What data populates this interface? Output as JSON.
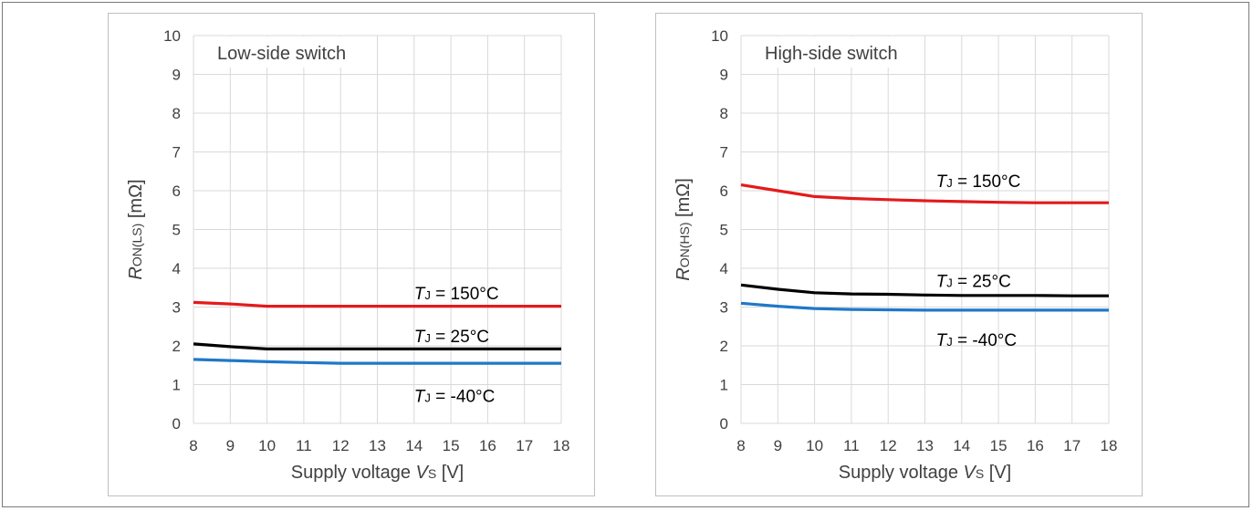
{
  "chart_data": [
    {
      "type": "line",
      "title": "Low-side switch",
      "xlabel": "Supply voltage VS [V]",
      "xlabel_parts": {
        "pre": "Supply voltage ",
        "var": "V",
        "sub": "S",
        "post": " [V]"
      },
      "ylabel": "RON(LS) [mΩ]",
      "ylabel_parts": {
        "var": "R",
        "sub": "ON(LS)",
        "post": " [mΩ]"
      },
      "xlim": [
        8,
        18
      ],
      "ylim": [
        0,
        10
      ],
      "xticks": [
        "8",
        "9",
        "10",
        "11",
        "12",
        "13",
        "14",
        "15",
        "16",
        "17",
        "18"
      ],
      "yticks": [
        "0",
        "1",
        "2",
        "3",
        "4",
        "5",
        "6",
        "7",
        "8",
        "9",
        "10"
      ],
      "grid": true,
      "series": [
        {
          "name": "TJ = 150°C",
          "label_parts": {
            "var": "T",
            "sub": "J",
            "post": " = 150°C"
          },
          "color": "#e31a1c",
          "x": [
            8,
            9,
            10,
            11,
            12,
            13,
            14,
            15,
            16,
            17,
            18
          ],
          "y": [
            3.12,
            3.08,
            3.02,
            3.02,
            3.02,
            3.02,
            3.02,
            3.02,
            3.02,
            3.02,
            3.02
          ],
          "label_at": [
            14,
            3.2
          ]
        },
        {
          "name": "TJ = 25°C",
          "label_parts": {
            "var": "T",
            "sub": "J",
            "post": " = 25°C"
          },
          "color": "#000000",
          "x": [
            8,
            9,
            10,
            11,
            12,
            13,
            14,
            15,
            16,
            17,
            18
          ],
          "y": [
            2.05,
            1.98,
            1.92,
            1.92,
            1.92,
            1.92,
            1.92,
            1.92,
            1.92,
            1.92,
            1.92
          ],
          "label_at": [
            14,
            2.1
          ]
        },
        {
          "name": "TJ = -40°C",
          "label_parts": {
            "var": "T",
            "sub": "J",
            "post": " = -40°C"
          },
          "color": "#1f78c8",
          "x": [
            8,
            9,
            10,
            11,
            12,
            13,
            14,
            15,
            16,
            17,
            18
          ],
          "y": [
            1.65,
            1.62,
            1.59,
            1.57,
            1.55,
            1.55,
            1.55,
            1.55,
            1.55,
            1.55,
            1.55
          ],
          "label_at": [
            14,
            0.55
          ]
        }
      ]
    },
    {
      "type": "line",
      "title": "High-side switch",
      "xlabel": "Supply voltage VS [V]",
      "xlabel_parts": {
        "pre": "Supply voltage ",
        "var": "V",
        "sub": "S",
        "post": " [V]"
      },
      "ylabel": "RON(HS) [mΩ]",
      "ylabel_parts": {
        "var": "R",
        "sub": "ON(HS)",
        "post": " [mΩ]"
      },
      "xlim": [
        8,
        18
      ],
      "ylim": [
        0,
        10
      ],
      "xticks": [
        "8",
        "9",
        "10",
        "11",
        "12",
        "13",
        "14",
        "15",
        "16",
        "17",
        "18"
      ],
      "yticks": [
        "0",
        "1",
        "2",
        "3",
        "4",
        "5",
        "6",
        "7",
        "8",
        "9",
        "10"
      ],
      "grid": true,
      "series": [
        {
          "name": "TJ = 150°C",
          "label_parts": {
            "var": "T",
            "sub": "J",
            "post": " = 150°C"
          },
          "color": "#e31a1c",
          "x": [
            8,
            9,
            10,
            11,
            12,
            13,
            14,
            15,
            16,
            17,
            18
          ],
          "y": [
            6.15,
            6.0,
            5.85,
            5.8,
            5.77,
            5.74,
            5.72,
            5.7,
            5.69,
            5.69,
            5.69
          ],
          "label_at": [
            13.3,
            6.1
          ]
        },
        {
          "name": "TJ = 25°C",
          "label_parts": {
            "var": "T",
            "sub": "J",
            "post": " = 25°C"
          },
          "color": "#000000",
          "x": [
            8,
            9,
            10,
            11,
            12,
            13,
            14,
            15,
            16,
            17,
            18
          ],
          "y": [
            3.57,
            3.46,
            3.37,
            3.34,
            3.33,
            3.31,
            3.3,
            3.3,
            3.3,
            3.29,
            3.29
          ],
          "label_at": [
            13.3,
            3.52
          ]
        },
        {
          "name": "TJ = -40°C",
          "label_parts": {
            "var": "T",
            "sub": "J",
            "post": " = -40°C"
          },
          "color": "#1f78c8",
          "x": [
            8,
            9,
            10,
            11,
            12,
            13,
            14,
            15,
            16,
            17,
            18
          ],
          "y": [
            3.1,
            3.02,
            2.96,
            2.94,
            2.93,
            2.92,
            2.92,
            2.92,
            2.92,
            2.92,
            2.92
          ],
          "label_at": [
            13.3,
            2.0
          ]
        }
      ]
    }
  ]
}
